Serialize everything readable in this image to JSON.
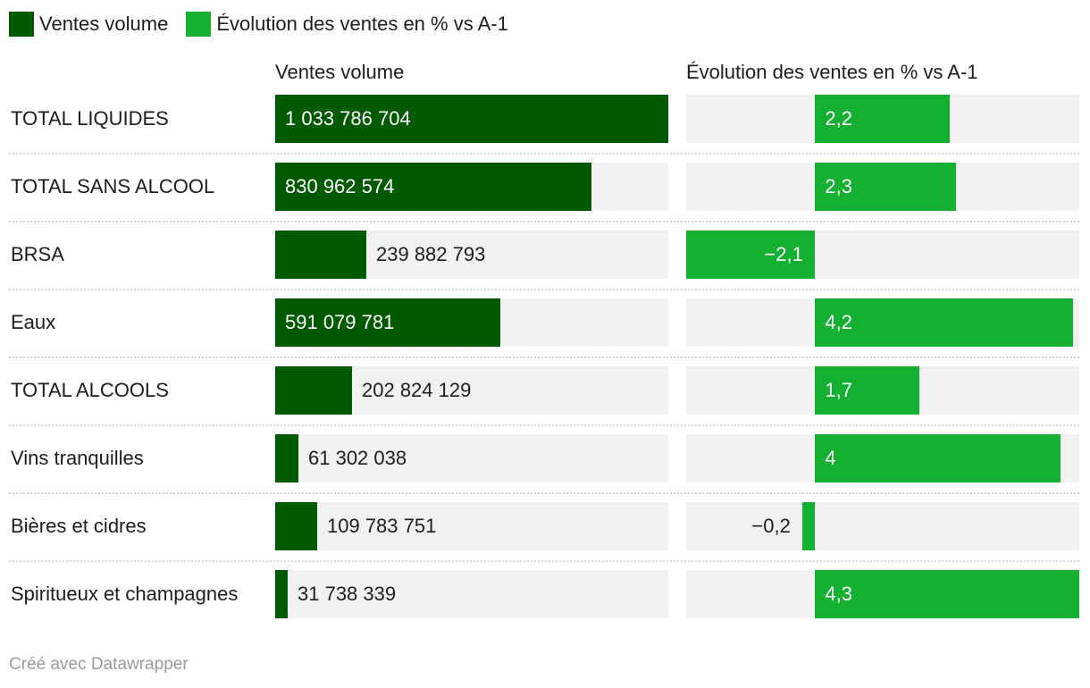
{
  "legend": [
    {
      "label": "Ventes volume",
      "color": "#005a00"
    },
    {
      "label": "Évolution des ventes en % vs A-1",
      "color": "#14b032"
    }
  ],
  "headers": {
    "volume": "Ventes volume",
    "evolution": "Évolution des ventes en % vs A-1"
  },
  "footer": "Créé avec Datawrapper",
  "chart_data": {
    "type": "bar",
    "title": "",
    "categories": [
      "TOTAL LIQUIDES",
      "TOTAL SANS ALCOOL",
      "BRSA",
      "Eaux",
      "TOTAL ALCOOLS",
      "Vins tranquilles",
      "Bières et cidres",
      "Spiritueux et champagnes"
    ],
    "series": [
      {
        "name": "Ventes volume",
        "color": "#005a00",
        "values": [
          1033786704,
          830962574,
          239882793,
          591079781,
          202824129,
          61302038,
          109783751,
          31738339
        ],
        "labels": [
          "1 033 786 704",
          "830 962 574",
          "239 882 793",
          "591 079 781",
          "202 824 129",
          "61 302 038",
          "109 783 751",
          "31 738 339"
        ],
        "range": [
          0,
          1033786704
        ]
      },
      {
        "name": "Évolution des ventes en % vs A-1",
        "color": "#14b032",
        "values": [
          2.2,
          2.3,
          -2.1,
          4.2,
          1.7,
          4,
          -0.2,
          4.3
        ],
        "labels": [
          "2,2",
          "2,3",
          "−2,1",
          "4,2",
          "1,7",
          "4",
          "−0,2",
          "4,3"
        ],
        "range": [
          -2.1,
          4.3
        ]
      }
    ]
  }
}
